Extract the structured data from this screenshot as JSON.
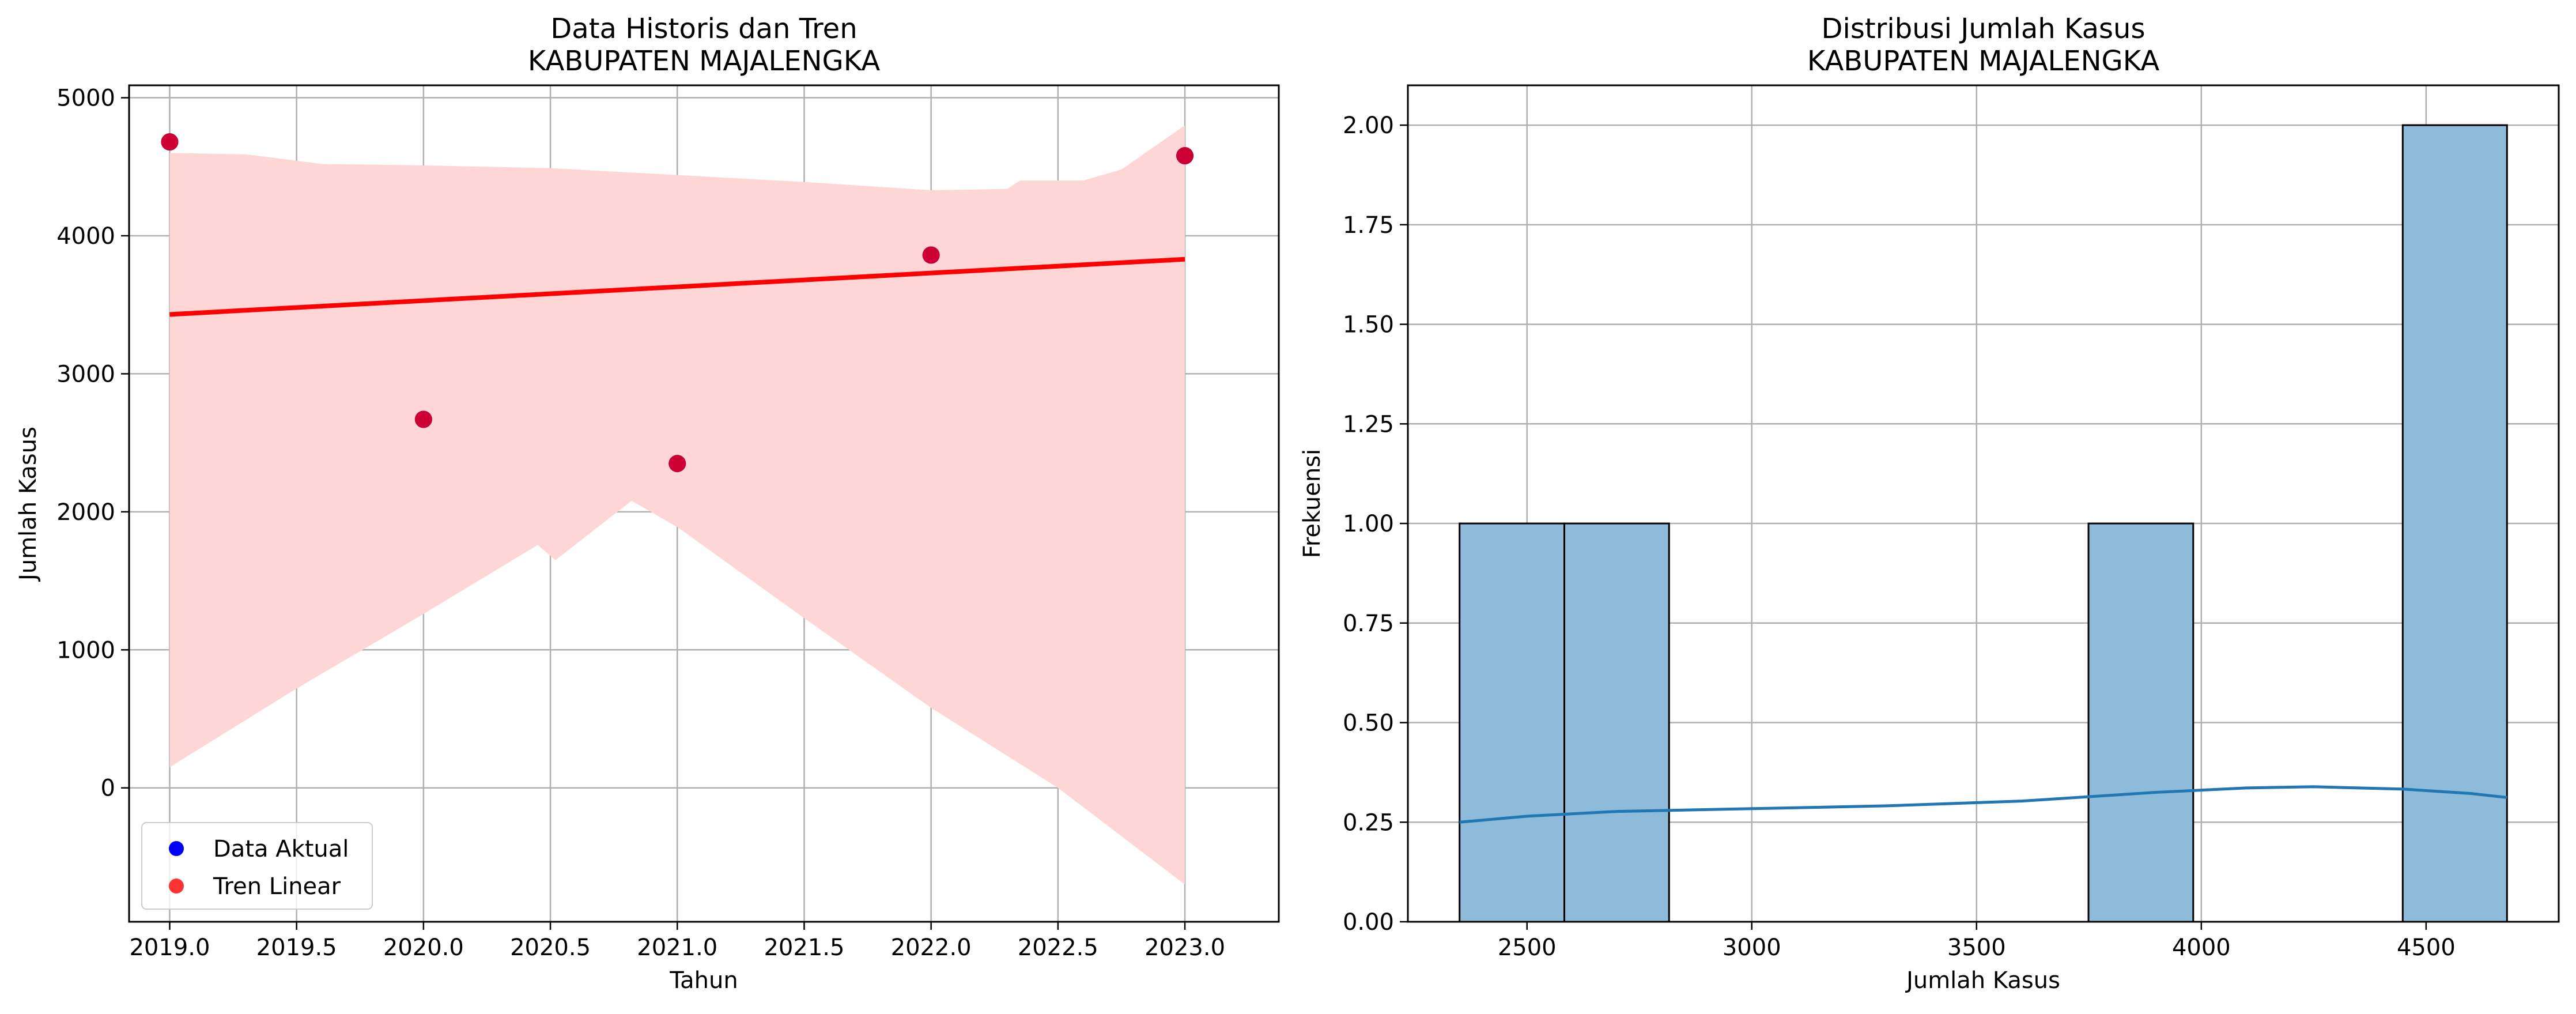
{
  "chart_data": [
    {
      "type": "scatter",
      "title": "Data Historis dan Tren",
      "subtitle": "KABUPATEN MAJALENGKA",
      "xlabel": "Tahun",
      "ylabel": "Jumlah Kasus",
      "xlim": [
        2018.84,
        2023.37
      ],
      "ylim": [
        -970,
        5090
      ],
      "x_ticks": [
        2019.0,
        2019.5,
        2020.0,
        2020.5,
        2021.0,
        2021.5,
        2022.0,
        2022.5,
        2023.0
      ],
      "x_tick_labels": [
        "2019.0",
        "2019.5",
        "2020.0",
        "2020.5",
        "2021.0",
        "2021.5",
        "2022.0",
        "2022.5",
        "2023.0"
      ],
      "y_ticks": [
        0,
        1000,
        2000,
        3000,
        4000,
        5000
      ],
      "y_tick_labels": [
        "0",
        "1000",
        "2000",
        "3000",
        "4000",
        "5000"
      ],
      "grid": true,
      "legend_position": "lower-left",
      "series": [
        {
          "name": "Data Aktual",
          "kind": "scatter",
          "color": "#0000ff",
          "points": [
            {
              "x": 2019,
              "y": 4680
            },
            {
              "x": 2020,
              "y": 2670
            },
            {
              "x": 2021,
              "y": 2350
            },
            {
              "x": 2022,
              "y": 3860
            },
            {
              "x": 2023,
              "y": 4580
            }
          ]
        },
        {
          "name": "Tren Linear",
          "kind": "regression",
          "color": "#ff0000",
          "line": [
            {
              "x": 2019,
              "y": 3430
            },
            {
              "x": 2023,
              "y": 3830
            }
          ],
          "band_color": "#ffd6d6",
          "band_upper": [
            {
              "x": 2019.0,
              "y": 4600
            },
            {
              "x": 2019.3,
              "y": 4590
            },
            {
              "x": 2019.6,
              "y": 4520
            },
            {
              "x": 2020.0,
              "y": 4510
            },
            {
              "x": 2020.5,
              "y": 4490
            },
            {
              "x": 2021.0,
              "y": 4440
            },
            {
              "x": 2021.5,
              "y": 4390
            },
            {
              "x": 2022.0,
              "y": 4330
            },
            {
              "x": 2022.3,
              "y": 4340
            },
            {
              "x": 2022.35,
              "y": 4400
            },
            {
              "x": 2022.6,
              "y": 4400
            },
            {
              "x": 2022.75,
              "y": 4480
            },
            {
              "x": 2023.0,
              "y": 4800
            }
          ],
          "band_lower": [
            {
              "x": 2019.0,
              "y": 150
            },
            {
              "x": 2019.5,
              "y": 720
            },
            {
              "x": 2020.0,
              "y": 1260
            },
            {
              "x": 2020.45,
              "y": 1760
            },
            {
              "x": 2020.52,
              "y": 1650
            },
            {
              "x": 2020.82,
              "y": 2080
            },
            {
              "x": 2021.0,
              "y": 1890
            },
            {
              "x": 2021.5,
              "y": 1230
            },
            {
              "x": 2022.0,
              "y": 580
            },
            {
              "x": 2022.5,
              "y": 0
            },
            {
              "x": 2023.0,
              "y": -700
            }
          ]
        }
      ]
    },
    {
      "type": "bar",
      "subtype": "histogram",
      "title": "Distribusi Jumlah Kasus",
      "subtitle": "KABUPATEN MAJALENGKA",
      "xlabel": "Jumlah Kasus",
      "ylabel": "Frekuensi",
      "xlim": [
        2235,
        4795
      ],
      "ylim": [
        0,
        2.1
      ],
      "x_ticks": [
        2500,
        3000,
        3500,
        4000,
        4500
      ],
      "x_tick_labels": [
        "2500",
        "3000",
        "3500",
        "4000",
        "4500"
      ],
      "y_ticks": [
        0,
        0.25,
        0.5,
        0.75,
        1.0,
        1.25,
        1.5,
        1.75,
        2.0
      ],
      "y_tick_labels": [
        "0.00",
        "0.25",
        "0.50",
        "0.75",
        "1.00",
        "1.25",
        "1.50",
        "1.75",
        "2.00"
      ],
      "grid": true,
      "bar_color": "#8fbbda",
      "bins": [
        {
          "x0": 2350,
          "x1": 2583,
          "count": 1
        },
        {
          "x0": 2583,
          "x1": 2816,
          "count": 1
        },
        {
          "x0": 3749,
          "x1": 3982,
          "count": 1
        },
        {
          "x0": 4448,
          "x1": 4680,
          "count": 2
        }
      ],
      "kde_color": "#1f77b4",
      "kde": [
        {
          "x": 2350,
          "y": 0.25
        },
        {
          "x": 2500,
          "y": 0.265
        },
        {
          "x": 2700,
          "y": 0.277
        },
        {
          "x": 3000,
          "y": 0.284
        },
        {
          "x": 3300,
          "y": 0.291
        },
        {
          "x": 3600,
          "y": 0.303
        },
        {
          "x": 3900,
          "y": 0.325
        },
        {
          "x": 4100,
          "y": 0.336
        },
        {
          "x": 4250,
          "y": 0.339
        },
        {
          "x": 4450,
          "y": 0.333
        },
        {
          "x": 4600,
          "y": 0.322
        },
        {
          "x": 4680,
          "y": 0.312
        }
      ]
    }
  ]
}
